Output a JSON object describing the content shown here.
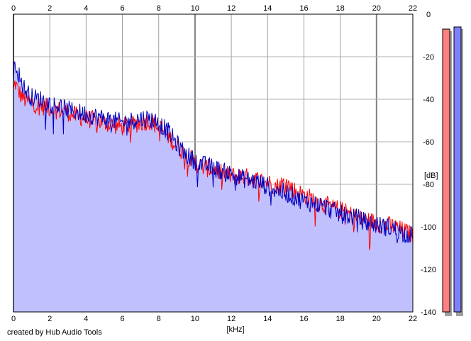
{
  "app": {
    "credit": "created by Hub Audio Tools"
  },
  "chart_data": {
    "type": "area",
    "xlabel": "[kHz]",
    "ylabel": "[dB]",
    "xlim": [
      0,
      22
    ],
    "ylim": [
      -140,
      0
    ],
    "x_ticks": [
      "0",
      "2",
      "4",
      "6",
      "8",
      "10",
      "12",
      "14",
      "16",
      "18",
      "20",
      "22"
    ],
    "y_ticks": [
      "0",
      "-20",
      "-40",
      "-60",
      "-80",
      "-100",
      "-120",
      "-140"
    ],
    "grid": true,
    "fill_color": "#c0c0ff",
    "series": [
      {
        "color": "#ff0000",
        "x": [
          0,
          0.1,
          0.2,
          0.4,
          0.6,
          0.8,
          1,
          1.5,
          2,
          2.5,
          3,
          3.5,
          4,
          4.5,
          5,
          5.5,
          6,
          6.5,
          7,
          7.5,
          8,
          8.5,
          9,
          9.5,
          10,
          10.5,
          11,
          11.5,
          12,
          12.5,
          13,
          13.5,
          14,
          14.5,
          15,
          15.5,
          16,
          16.5,
          17,
          17.5,
          18,
          18.5,
          19,
          19.5,
          20,
          20.5,
          21,
          21.5,
          22
        ],
        "y": [
          -36,
          -32,
          -35,
          -38,
          -40,
          -41,
          -42,
          -43,
          -44,
          -45,
          -46,
          -48,
          -49,
          -50,
          -51,
          -52,
          -53,
          -52,
          -51,
          -50,
          -53,
          -57,
          -62,
          -66,
          -70,
          -72,
          -73,
          -75,
          -76,
          -76,
          -77,
          -78,
          -79,
          -81,
          -79,
          -83,
          -85,
          -87,
          -89,
          -91,
          -92,
          -94,
          -96,
          -97,
          -98,
          -99,
          -100,
          -102,
          -104
        ]
      },
      {
        "color": "#0000c0",
        "x": [
          0,
          0.1,
          0.2,
          0.4,
          0.6,
          0.8,
          1,
          1.5,
          2,
          2.5,
          3,
          3.5,
          4,
          4.5,
          5,
          5.5,
          6,
          6.5,
          7,
          7.5,
          8,
          8.5,
          9,
          9.5,
          10,
          10.5,
          11,
          11.5,
          12,
          12.5,
          13,
          13.5,
          14,
          14.5,
          15,
          15.5,
          16,
          16.5,
          17,
          17.5,
          18,
          18.5,
          19,
          19.5,
          20,
          20.5,
          21,
          21.5,
          22
        ],
        "y": [
          -30,
          -21,
          -26,
          -31,
          -35,
          -37,
          -39,
          -40,
          -42,
          -43,
          -45,
          -46,
          -47,
          -48,
          -49,
          -50,
          -51,
          -50,
          -49,
          -49,
          -51,
          -55,
          -61,
          -66,
          -69,
          -71,
          -72,
          -74,
          -75,
          -77,
          -78,
          -79,
          -81,
          -83,
          -84,
          -86,
          -88,
          -89,
          -90,
          -92,
          -94,
          -95,
          -96,
          -98,
          -99,
          -100,
          -101,
          -103,
          -104
        ]
      }
    ],
    "level_meters": [
      {
        "color": "#ff8080",
        "value_db": -7
      },
      {
        "color": "#8080ff",
        "value_db": -6
      }
    ]
  }
}
